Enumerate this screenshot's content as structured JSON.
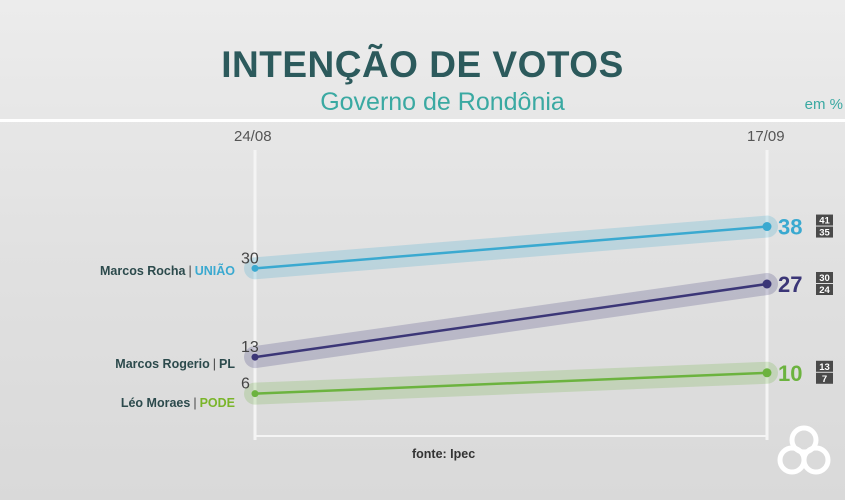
{
  "header": {
    "title": "INTENÇÃO DE VOTOS",
    "subtitle": "Governo de Rondônia",
    "unit": "em %"
  },
  "source": "fonte: Ipec",
  "logo": {
    "icon": "network-logo-icon"
  },
  "chart_data": {
    "type": "line",
    "title": "INTENÇÃO DE VOTOS",
    "subtitle": "Governo de Rondônia",
    "x": [
      "24/08",
      "17/09"
    ],
    "ylabel": "em %",
    "ylim": [
      0,
      45
    ],
    "grid": false,
    "legend": "left",
    "series": [
      {
        "name": "Marcos Rocha",
        "party": "UNIÃO",
        "color": "#3aa9d0",
        "values": [
          30,
          38
        ],
        "interval": [
          "41",
          "35"
        ]
      },
      {
        "name": "Marcos Rogerio",
        "party": "PL",
        "color": "#3b3677",
        "values": [
          13,
          27
        ],
        "interval": [
          "30",
          "24"
        ]
      },
      {
        "name": "Léo Moraes",
        "party": "PODE",
        "color": "#6cb33f",
        "values": [
          6,
          10
        ],
        "interval": [
          "13",
          "7"
        ]
      }
    ]
  }
}
